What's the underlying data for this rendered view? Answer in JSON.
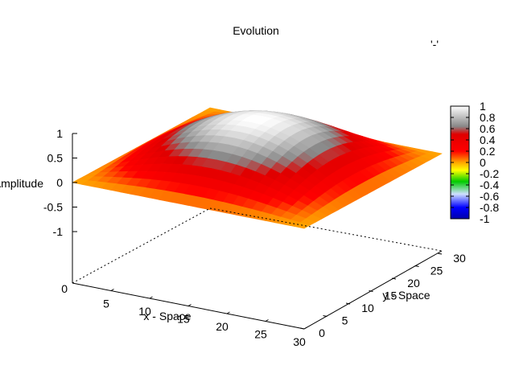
{
  "chart_data": {
    "type": "surface",
    "title": "Evolution",
    "xlabel": "x - Space",
    "ylabel": "y - Space",
    "zlabel": "Amplitude",
    "corner_mark": "'-'",
    "x_range": [
      0,
      30
    ],
    "y_range": [
      0,
      30
    ],
    "z_range": [
      -1,
      1
    ],
    "x_ticks": [
      "5",
      "10",
      "15",
      "20",
      "25",
      "30"
    ],
    "y_ticks": [
      "0",
      "5",
      "10",
      "15",
      "20",
      "25",
      "30"
    ],
    "z_ticks": [
      "1",
      "0.5",
      "0",
      "-0.5",
      "-1"
    ],
    "z_base_label": "0",
    "colorbar_ticks": [
      "1",
      "0.8",
      "0.6",
      "0.4",
      "0.2",
      "0",
      "-0.2",
      "-0.4",
      "-0.6",
      "-0.8",
      "-1"
    ],
    "colorbar_range": [
      -1,
      1
    ],
    "surface_function": "sin(pi*x/30)*sin(pi*y/30)",
    "surface_values": {
      "x": [
        0,
        5,
        10,
        15,
        20,
        25,
        30
      ],
      "y": [
        0,
        5,
        10,
        15,
        20,
        25,
        30
      ],
      "z": [
        [
          0.0,
          0.0,
          0.0,
          0.0,
          0.0,
          0.0,
          0.0
        ],
        [
          0.0,
          0.25,
          0.43,
          0.5,
          0.43,
          0.25,
          0.0
        ],
        [
          0.0,
          0.43,
          0.75,
          0.87,
          0.75,
          0.43,
          0.0
        ],
        [
          0.0,
          0.5,
          0.87,
          1.0,
          0.87,
          0.5,
          0.0
        ],
        [
          0.0,
          0.43,
          0.75,
          0.87,
          0.75,
          0.43,
          0.0
        ],
        [
          0.0,
          0.25,
          0.43,
          0.5,
          0.43,
          0.25,
          0.0
        ],
        [
          0.0,
          0.0,
          0.0,
          0.0,
          0.0,
          0.0,
          0.0
        ]
      ]
    },
    "palette": [
      {
        "value": -1.0,
        "color": "#0000aa"
      },
      {
        "value": -0.8,
        "color": "#0000ff"
      },
      {
        "value": -0.55,
        "color": "#cfe0ff"
      },
      {
        "value": -0.35,
        "color": "#00cc00"
      },
      {
        "value": -0.15,
        "color": "#ffff00"
      },
      {
        "value": 0.0,
        "color": "#ffa500"
      },
      {
        "value": 0.2,
        "color": "#ff0000"
      },
      {
        "value": 0.5,
        "color": "#e00000"
      },
      {
        "value": 0.65,
        "color": "#888888"
      },
      {
        "value": 1.0,
        "color": "#ffffff"
      }
    ],
    "grid": false,
    "colorbar_position": "right"
  }
}
